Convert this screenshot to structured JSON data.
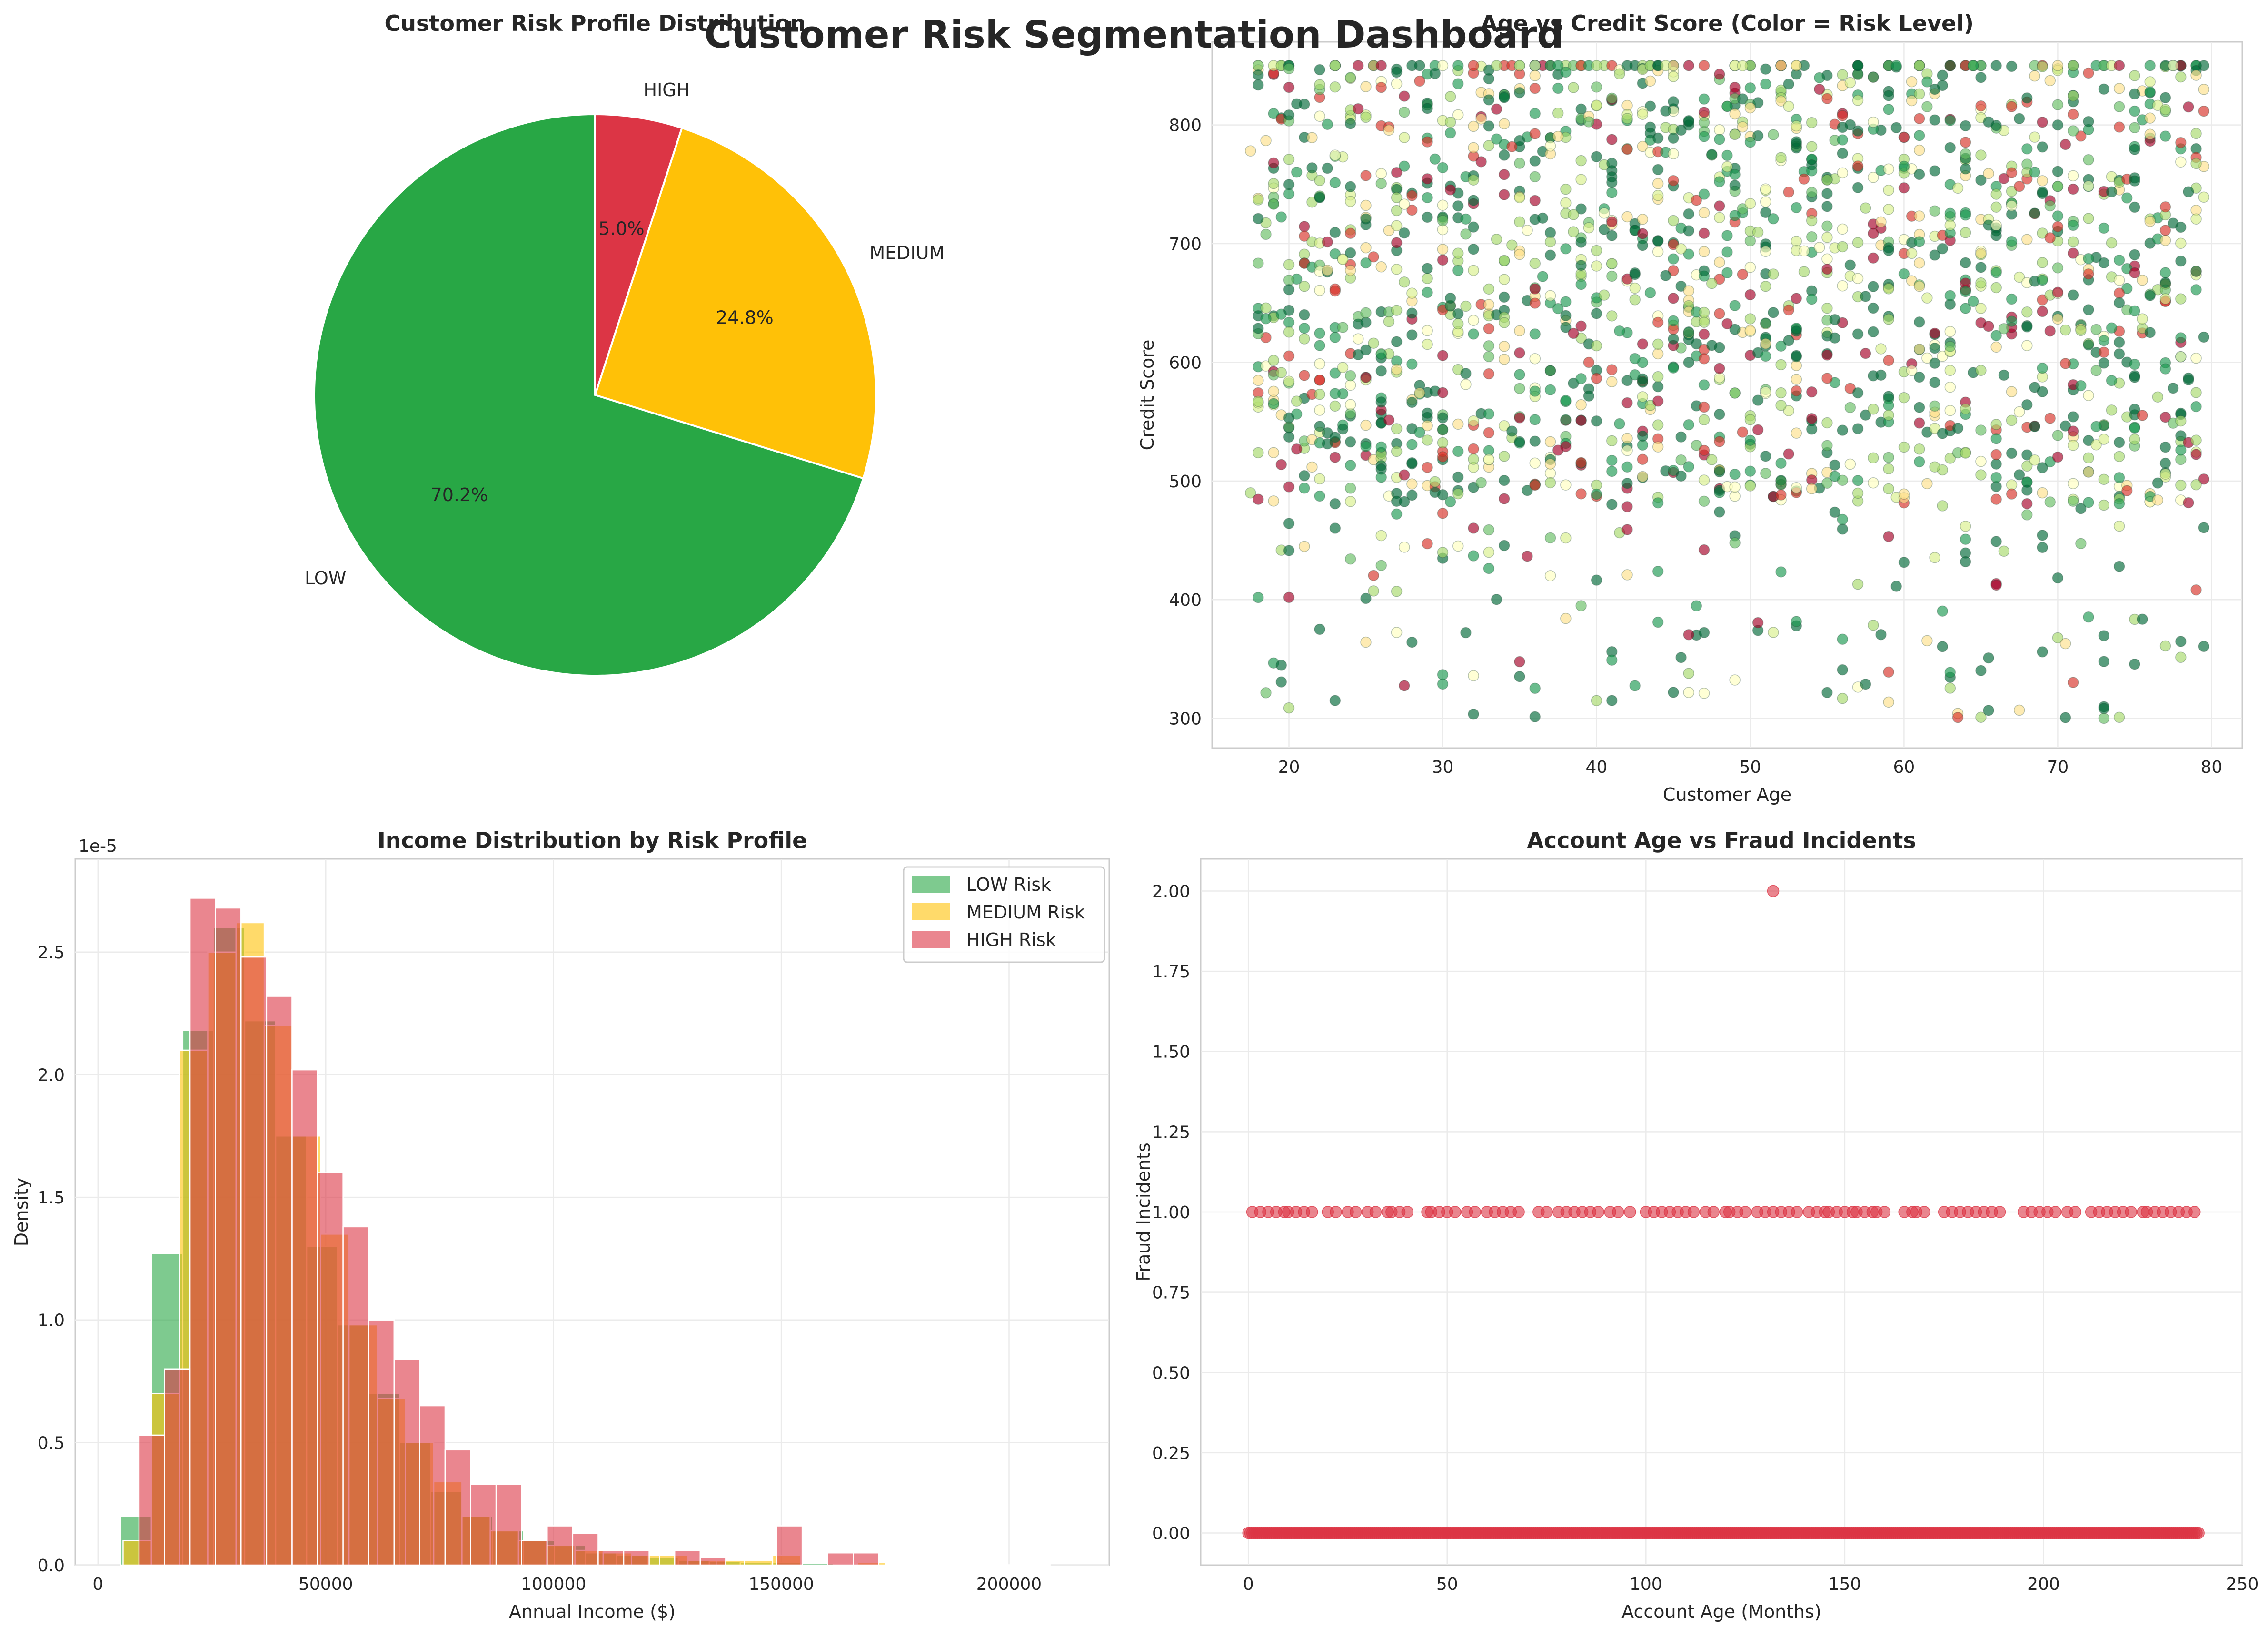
{
  "title": "Customer Risk Segmentation Dashboard",
  "colors": {
    "low": "#28a745",
    "medium": "#ffc107",
    "high": "#dc3545",
    "grid": "#ebebeb",
    "frame": "#cccccc"
  },
  "chart_data": [
    {
      "type": "pie",
      "title": "Customer Risk Profile Distribution",
      "labels": [
        "LOW",
        "MEDIUM",
        "HIGH"
      ],
      "values": [
        70.2,
        24.8,
        5.0
      ],
      "value_labels": [
        "70.2%",
        "24.8%",
        "5.0%"
      ],
      "colors": [
        "#28a745",
        "#ffc107",
        "#dc3545"
      ],
      "start_angle": 90
    },
    {
      "type": "scatter",
      "title": "Age vs Credit Score (Color = Risk Level)",
      "xlabel": "Customer Age",
      "ylabel": "Credit Score",
      "xlim": [
        15,
        82
      ],
      "ylim": [
        275,
        870
      ],
      "xticks": [
        20,
        30,
        40,
        50,
        60,
        70,
        80
      ],
      "yticks": [
        300,
        400,
        500,
        600,
        700,
        800
      ],
      "x_range": [
        18,
        79
      ],
      "y_range": [
        300,
        850
      ],
      "colormap": "RdYlGn"
    },
    {
      "type": "bar",
      "title": "Income Distribution by Risk Profile",
      "xlabel": "Annual Income ($)",
      "ylabel": "Density",
      "offset_text": "1e-5",
      "xlim": [
        -5000,
        222000
      ],
      "ylim": [
        0,
        2.88
      ],
      "xticks": [
        0,
        50000,
        100000,
        150000,
        200000
      ],
      "xtick_labels": [
        "0",
        "50000",
        "100000",
        "150000",
        "200000"
      ],
      "yticks": [
        0.0,
        0.5,
        1.0,
        1.5,
        2.0,
        2.5
      ],
      "ytick_labels": [
        "0.0",
        "0.5",
        "1.0",
        "1.5",
        "2.0",
        "2.5"
      ],
      "legend_placement": "upper right",
      "series": [
        {
          "name": "LOW Risk",
          "color": "#28a745",
          "bin_width": 6800,
          "bin_start": 5000,
          "values": [
            0.2,
            1.27,
            2.18,
            2.6,
            2.22,
            1.75,
            1.3,
            0.98,
            0.7,
            0.5,
            0.3,
            0.2,
            0.14,
            0.1,
            0.08,
            0.05,
            0.04,
            0.03,
            0.02,
            0.015,
            0.01,
            0.01,
            0.008,
            0.005,
            0.004,
            0.003,
            0.002,
            0.002,
            0.001,
            0.001
          ]
        },
        {
          "name": "MEDIUM Risk",
          "color": "#ffc107",
          "bin_width": 6200,
          "bin_start": 5500,
          "values": [
            0.1,
            0.7,
            2.1,
            2.5,
            2.62,
            2.2,
            1.75,
            1.35,
            0.98,
            0.68,
            0.5,
            0.34,
            0.2,
            0.14,
            0.1,
            0.08,
            0.06,
            0.05,
            0.04,
            0.04,
            0.02,
            0.02,
            0.02,
            0.04,
            0.0,
            0.0,
            0.01,
            0.0,
            0.0,
            0.0
          ]
        },
        {
          "name": "HIGH Risk",
          "color": "#dc3545",
          "bin_width": 5600,
          "bin_start": 9000,
          "values": [
            0.53,
            0.8,
            2.72,
            2.68,
            2.48,
            2.32,
            2.02,
            1.6,
            1.38,
            1.0,
            0.84,
            0.65,
            0.47,
            0.33,
            0.33,
            0.1,
            0.16,
            0.13,
            0.06,
            0.06,
            0.0,
            0.06,
            0.03,
            0.0,
            0.0,
            0.16,
            0.0,
            0.05,
            0.05,
            0.0
          ]
        }
      ]
    },
    {
      "type": "scatter",
      "title": "Account Age vs Fraud Incidents",
      "xlabel": "Account Age (Months)",
      "ylabel": "Fraud Incidents",
      "xlim": [
        -12,
        250
      ],
      "ylim": [
        -0.1,
        2.1
      ],
      "xticks": [
        0,
        50,
        100,
        150,
        200,
        250
      ],
      "yticks": [
        0.0,
        0.25,
        0.5,
        0.75,
        1.0,
        1.25,
        1.5,
        1.75,
        2.0
      ],
      "ytick_labels": [
        "0.00",
        "0.25",
        "0.50",
        "0.75",
        "1.00",
        "1.25",
        "1.50",
        "1.75",
        "2.00"
      ],
      "color": "#dc3545",
      "series": [
        {
          "y": 2,
          "x": [
            132
          ]
        },
        {
          "y": 1,
          "x": [
            1,
            3,
            5,
            7,
            9,
            10,
            12,
            14,
            16,
            20,
            22,
            25,
            27,
            30,
            32,
            35,
            36,
            38,
            40,
            45,
            46,
            48,
            50,
            52,
            55,
            57,
            60,
            62,
            64,
            66,
            68,
            73,
            75,
            78,
            80,
            82,
            84,
            86,
            88,
            91,
            93,
            96,
            100,
            102,
            104,
            106,
            108,
            110,
            112,
            115,
            117,
            120,
            121,
            123,
            125,
            128,
            130,
            132,
            134,
            136,
            138,
            141,
            143,
            145,
            146,
            148,
            150,
            152,
            153,
            155,
            157,
            158,
            160,
            165,
            167,
            168,
            170,
            175,
            177,
            179,
            181,
            183,
            185,
            187,
            189,
            195,
            197,
            199,
            201,
            203,
            206,
            208,
            212,
            214,
            216,
            218,
            220,
            222,
            225,
            226,
            228,
            230,
            232,
            234,
            236,
            238
          ]
        },
        {
          "y": 0,
          "x_range": [
            0,
            239
          ]
        }
      ]
    }
  ]
}
